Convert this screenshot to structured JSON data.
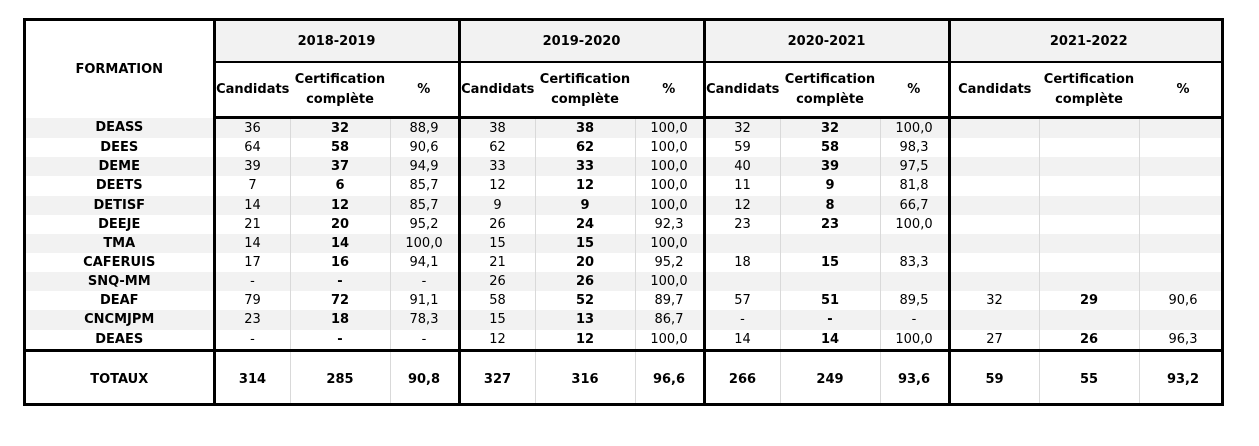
{
  "table": {
    "formation_header": "FORMATION",
    "years": [
      "2018-2019",
      "2019-2020",
      "2020-2021",
      "2021-2022"
    ],
    "subheaders": {
      "candidats": "Candidats",
      "certification": "Certification complète",
      "pct": "%"
    },
    "rows": [
      {
        "name": "DEASS",
        "cells": [
          "36",
          "32",
          "88,9",
          "38",
          "38",
          "100,0",
          "32",
          "32",
          "100,0",
          "",
          "",
          ""
        ]
      },
      {
        "name": "DEES",
        "cells": [
          "64",
          "58",
          "90,6",
          "62",
          "62",
          "100,0",
          "59",
          "58",
          "98,3",
          "",
          "",
          ""
        ]
      },
      {
        "name": "DEME",
        "cells": [
          "39",
          "37",
          "94,9",
          "33",
          "33",
          "100,0",
          "40",
          "39",
          "97,5",
          "",
          "",
          ""
        ]
      },
      {
        "name": "DEETS",
        "cells": [
          "7",
          "6",
          "85,7",
          "12",
          "12",
          "100,0",
          "11",
          "9",
          "81,8",
          "",
          "",
          ""
        ]
      },
      {
        "name": "DETISF",
        "cells": [
          "14",
          "12",
          "85,7",
          "9",
          "9",
          "100,0",
          "12",
          "8",
          "66,7",
          "",
          "",
          ""
        ]
      },
      {
        "name": "DEEJE",
        "cells": [
          "21",
          "20",
          "95,2",
          "26",
          "24",
          "92,3",
          "23",
          "23",
          "100,0",
          "",
          "",
          ""
        ]
      },
      {
        "name": "TMA",
        "cells": [
          "14",
          "14",
          "100,0",
          "15",
          "15",
          "100,0",
          "",
          "",
          "",
          "",
          "",
          ""
        ]
      },
      {
        "name": "CAFERUIS",
        "cells": [
          "17",
          "16",
          "94,1",
          "21",
          "20",
          "95,2",
          "18",
          "15",
          "83,3",
          "",
          "",
          ""
        ]
      },
      {
        "name": "SNQ-MM",
        "cells": [
          "-",
          "-",
          "-",
          "26",
          "26",
          "100,0",
          "",
          "",
          "",
          "",
          "",
          ""
        ]
      },
      {
        "name": "DEAF",
        "cells": [
          "79",
          "72",
          "91,1",
          "58",
          "52",
          "89,7",
          "57",
          "51",
          "89,5",
          "32",
          "29",
          "90,6"
        ]
      },
      {
        "name": "CNCMJPM",
        "cells": [
          "23",
          "18",
          "78,3",
          "15",
          "13",
          "86,7",
          "-",
          "-",
          "-",
          "",
          "",
          ""
        ]
      },
      {
        "name": "DEAES",
        "cells": [
          "-",
          "-",
          "-",
          "12",
          "12",
          "100,0",
          "14",
          "14",
          "100,0",
          "27",
          "26",
          "96,3"
        ]
      }
    ],
    "totals": {
      "name": "TOTAUX",
      "cells": [
        "314",
        "285",
        "90,8",
        "327",
        "316",
        "96,6",
        "266",
        "249",
        "93,6",
        "59",
        "55",
        "93,2"
      ]
    }
  }
}
